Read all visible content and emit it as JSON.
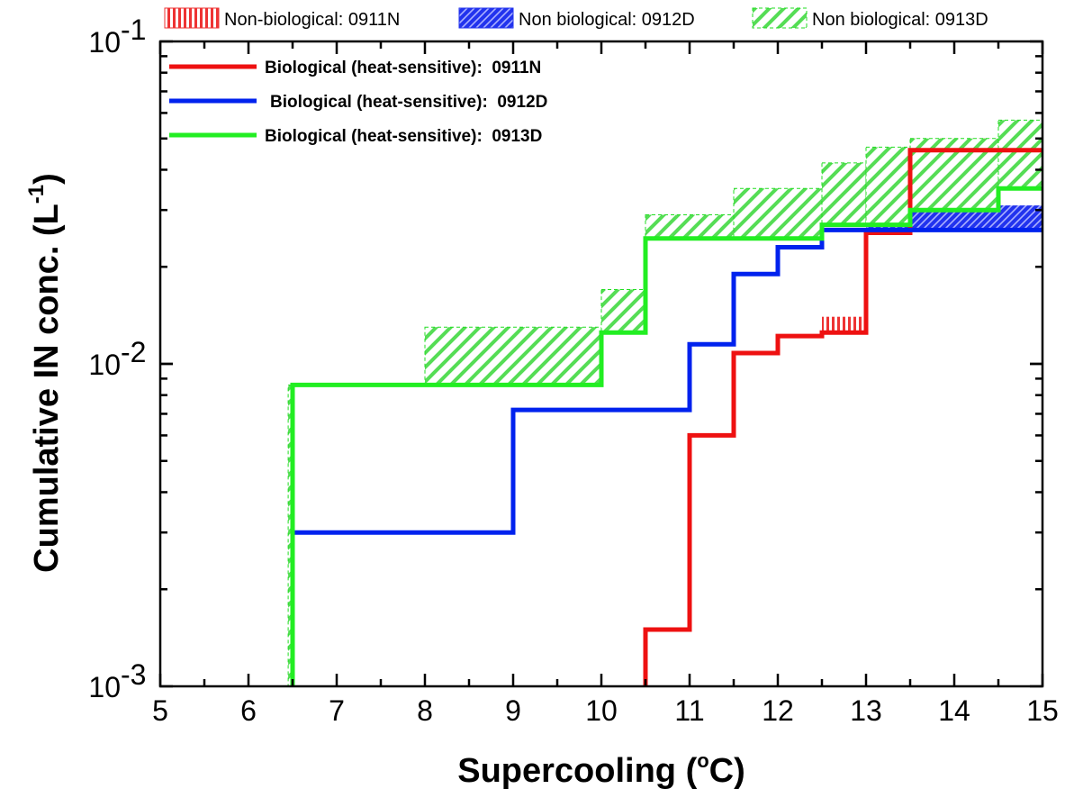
{
  "chart_data": {
    "type": "line",
    "subtype": "step",
    "xlabel": "Supercooling (°C)",
    "xlabel_main": "Supercooling (",
    "xlabel_sup": "o",
    "xlabel_end": "C)",
    "ylabel_main": "Cumulative IN conc. (L",
    "ylabel_sup": "-1",
    "ylabel_end": ")",
    "xlim": [
      5,
      15
    ],
    "ylim": [
      0.001,
      0.1
    ],
    "yscale": "log",
    "x_ticks": [
      "5",
      "6",
      "7",
      "8",
      "9",
      "10",
      "11",
      "12",
      "13",
      "14",
      "15"
    ],
    "y_ticks": [
      {
        "value": 0.001,
        "base": "10",
        "exp": "-3"
      },
      {
        "value": 0.01,
        "base": "10",
        "exp": "-2"
      },
      {
        "value": 0.1,
        "base": "10",
        "exp": "-1"
      }
    ],
    "grid": false,
    "legend_placement": "top",
    "bands": [
      {
        "name": "Non-biological: 0911N",
        "color": "#ee3333",
        "pattern": "vertical-hatch",
        "steps": [
          {
            "x0": 12.5,
            "x1": 13.0,
            "y0": 0.0125,
            "y1": 0.014
          },
          {
            "x0": 13.5,
            "x1": 15.0,
            "y0": 0.046,
            "y1": 0.05
          }
        ]
      },
      {
        "name": "Non biological: 0912D",
        "color": "#2233ee",
        "pattern": "diagonal-dense",
        "steps": [
          {
            "x0": 13.0,
            "x1": 13.5,
            "y0": 0.026,
            "y1": 0.03
          },
          {
            "x0": 13.5,
            "x1": 15.0,
            "y0": 0.026,
            "y1": 0.031
          }
        ]
      },
      {
        "name": "Non biological: 0913D",
        "color": "#22dd22",
        "pattern": "diagonal-sparse",
        "steps": [
          {
            "x0": 6.45,
            "x1": 6.5,
            "y0": 0.001,
            "y1": 0.0086
          },
          {
            "x0": 8.0,
            "x1": 10.0,
            "y0": 0.0086,
            "y1": 0.013
          },
          {
            "x0": 10.0,
            "x1": 10.5,
            "y0": 0.0125,
            "y1": 0.017
          },
          {
            "x0": 10.5,
            "x1": 11.5,
            "y0": 0.0245,
            "y1": 0.029
          },
          {
            "x0": 11.5,
            "x1": 12.5,
            "y0": 0.0245,
            "y1": 0.035
          },
          {
            "x0": 12.5,
            "x1": 13.0,
            "y0": 0.027,
            "y1": 0.042
          },
          {
            "x0": 13.0,
            "x1": 13.5,
            "y0": 0.027,
            "y1": 0.047
          },
          {
            "x0": 13.5,
            "x1": 14.5,
            "y0": 0.03,
            "y1": 0.05
          },
          {
            "x0": 14.5,
            "x1": 15.0,
            "y0": 0.035,
            "y1": 0.057
          }
        ]
      }
    ],
    "series": [
      {
        "name": "Biological (heat-sensitive):  0911N",
        "color": "#ee1111",
        "x": [
          10.5,
          11.0,
          11.5,
          12.0,
          12.5,
          13.0,
          13.5,
          15.0
        ],
        "y": [
          0.0015,
          0.006,
          0.0108,
          0.0122,
          0.0125,
          0.0255,
          0.046,
          0.046
        ]
      },
      {
        "name": "Biological (heat-sensitive):  0912D",
        "color": "#0022ee",
        "x": [
          6.5,
          9.0,
          10.0,
          11.0,
          11.5,
          12.0,
          12.5,
          13.0,
          13.5,
          15.0
        ],
        "y": [
          0.003,
          0.0072,
          0.0072,
          0.0115,
          0.019,
          0.023,
          0.026,
          0.026,
          0.026,
          0.026
        ]
      },
      {
        "name": "Biological (heat-sensitive):  0913D",
        "color": "#22ee22",
        "x": [
          6.5,
          10.0,
          10.5,
          12.5,
          13.5,
          14.5,
          15.0
        ],
        "y": [
          0.0086,
          0.0125,
          0.0245,
          0.027,
          0.03,
          0.035,
          0.035
        ]
      }
    ]
  }
}
